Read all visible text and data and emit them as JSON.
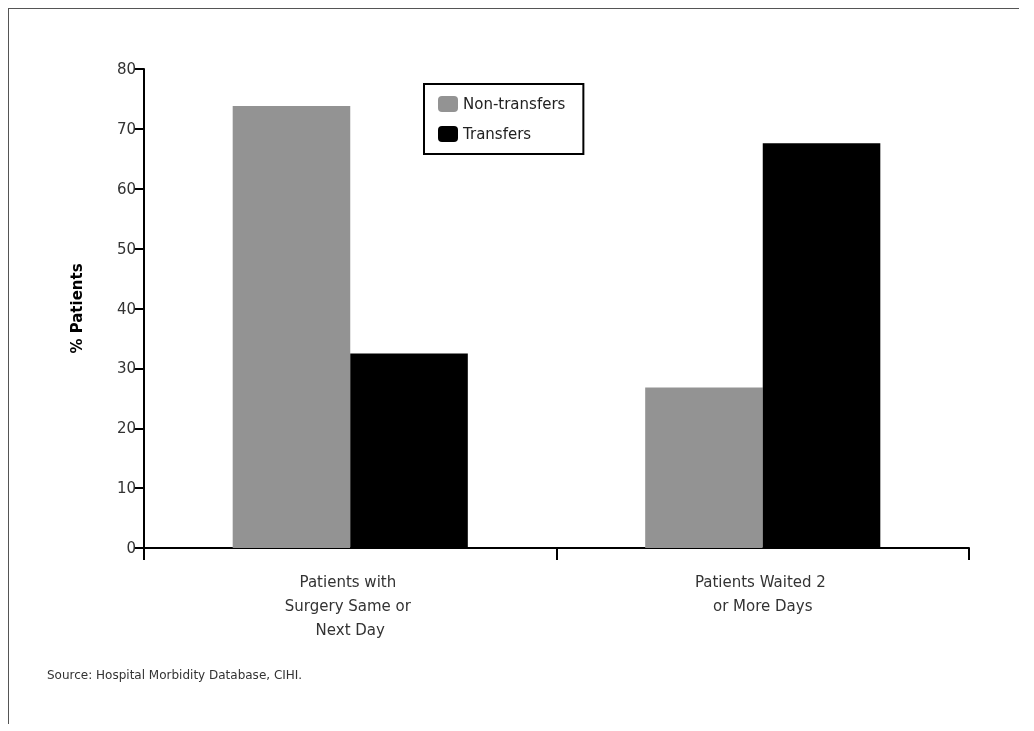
{
  "chart_data": {
    "type": "bar",
    "ylabel": "% Patients",
    "categories": [
      "Patients with Surgery Same or Next Day",
      "Patients Waited 2 or More Days"
    ],
    "series": [
      {
        "name": "Non-transfers",
        "color": "#939393",
        "values": [
          73.8,
          26.8
        ]
      },
      {
        "name": "Transfers",
        "color": "#000000",
        "values": [
          32.5,
          67.6
        ]
      }
    ],
    "ylim": [
      0,
      80
    ],
    "yticks": [
      0,
      10,
      20,
      30,
      40,
      50,
      60,
      70,
      80
    ],
    "grid": false,
    "legend": "top",
    "annotations": [
      "Source: Hospital Morbidity Database, CIHI."
    ]
  }
}
